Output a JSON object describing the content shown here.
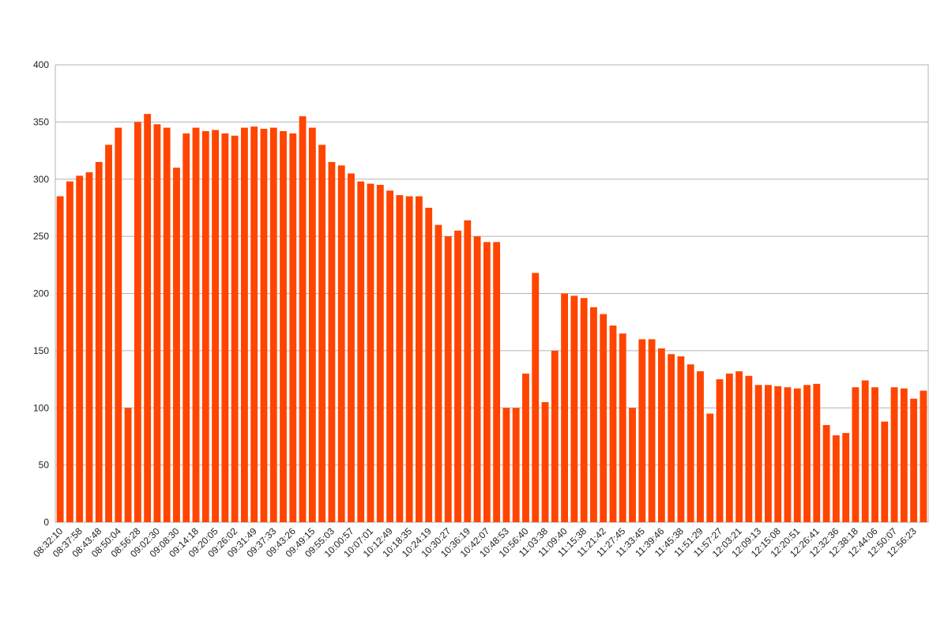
{
  "chart_data": {
    "type": "bar",
    "categories": [
      "08:32:10",
      null,
      "08:37:58",
      null,
      "08:43:48",
      null,
      "08:50:04",
      null,
      "08:56:28",
      null,
      "09:02:30",
      null,
      "09:08:30",
      null,
      "09:14:18",
      null,
      "09:20:05",
      null,
      "09:26:02",
      null,
      "09:31:49",
      null,
      "09:37:33",
      null,
      "09:43:26",
      null,
      "09:49:15",
      null,
      "09:55:03",
      null,
      "10:00:57",
      null,
      "10:07:01",
      null,
      "10:12:49",
      null,
      "10:18:35",
      null,
      "10:24:19",
      null,
      "10:30:27",
      null,
      "10:36:19",
      null,
      "10:42:07",
      null,
      "10:48:53",
      null,
      "10:56:40",
      null,
      "11:03:38",
      null,
      "11:09:40",
      null,
      "11:15:38",
      null,
      "11:21:42",
      null,
      "11:27:45",
      null,
      "11:33:45",
      null,
      "11:39:46",
      null,
      "11:45:38",
      null,
      "11:51:29",
      null,
      "11:57:27",
      null,
      "12:03:21",
      null,
      "12:09:13",
      null,
      "12:15:08",
      null,
      "12:20:51",
      null,
      "12:26:41",
      null,
      "12:32:36",
      null,
      "12:38:18",
      null,
      "12:44:06",
      null,
      "12:50:07",
      null,
      "12:56:23",
      null
    ],
    "values": [
      285,
      298,
      303,
      306,
      315,
      330,
      345,
      100,
      350,
      357,
      348,
      345,
      310,
      340,
      345,
      342,
      343,
      340,
      338,
      345,
      346,
      344,
      345,
      342,
      340,
      355,
      345,
      330,
      315,
      312,
      305,
      298,
      296,
      295,
      290,
      286,
      285,
      285,
      275,
      260,
      250,
      255,
      264,
      250,
      245,
      245,
      100,
      100,
      130,
      218,
      105,
      150,
      200,
      198,
      196,
      188,
      182,
      172,
      165,
      100,
      160,
      160,
      152,
      147,
      145,
      138,
      132,
      95,
      125,
      130,
      132,
      128,
      120,
      120,
      119,
      118,
      117,
      120,
      121,
      85,
      76,
      78,
      118,
      124,
      118,
      88,
      118,
      117,
      108,
      115
    ],
    "color": "#ff4500",
    "ylim": [
      0,
      400
    ],
    "yticks": [
      0,
      50,
      100,
      150,
      200,
      250,
      300,
      350,
      400
    ],
    "grid": true
  }
}
